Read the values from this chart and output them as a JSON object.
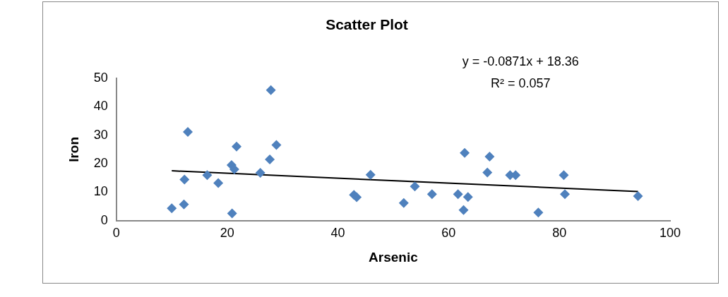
{
  "chart_data": {
    "type": "scatter",
    "title": "Scatter Plot",
    "xlabel": "Arsenic",
    "ylabel": "Iron",
    "xlim": [
      0,
      100
    ],
    "xticks": [
      0,
      20,
      40,
      60,
      80,
      100
    ],
    "ylim": [
      0,
      50
    ],
    "yticks": [
      0,
      10,
      20,
      30,
      40,
      50
    ],
    "grid": false,
    "legend": false,
    "marker": "diamond",
    "annotations": [
      "y = -0.0871x + 18.36",
      "R² = 0.057"
    ],
    "series": [
      {
        "type": "scatter",
        "color": "#4f81bd",
        "x": [
          10.0,
          12.2,
          12.3,
          12.9,
          16.4,
          18.4,
          20.8,
          21.3,
          20.9,
          21.7,
          26.0,
          27.7,
          27.9,
          28.9,
          42.9,
          43.4,
          45.9,
          51.9,
          53.9,
          57.0,
          61.7,
          63.5,
          62.7,
          62.9,
          67.4,
          67.0,
          71.1,
          72.1,
          76.2,
          80.8,
          81.0,
          94.2
        ],
        "values": [
          4.3,
          5.7,
          14.4,
          31.2,
          16.0,
          13.2,
          19.5,
          18.0,
          2.5,
          26.0,
          16.8,
          21.5,
          45.9,
          26.6,
          9.0,
          8.2,
          16.1,
          6.2,
          12.0,
          9.3,
          9.3,
          8.3,
          3.7,
          23.8,
          22.5,
          16.9,
          16.0,
          16.0,
          2.8,
          16.0,
          9.3,
          8.6
        ]
      },
      {
        "type": "line",
        "color": "#000000",
        "marker": "none",
        "x": [
          10.0,
          94.2
        ],
        "values": [
          17.5,
          10.2
        ]
      }
    ]
  }
}
